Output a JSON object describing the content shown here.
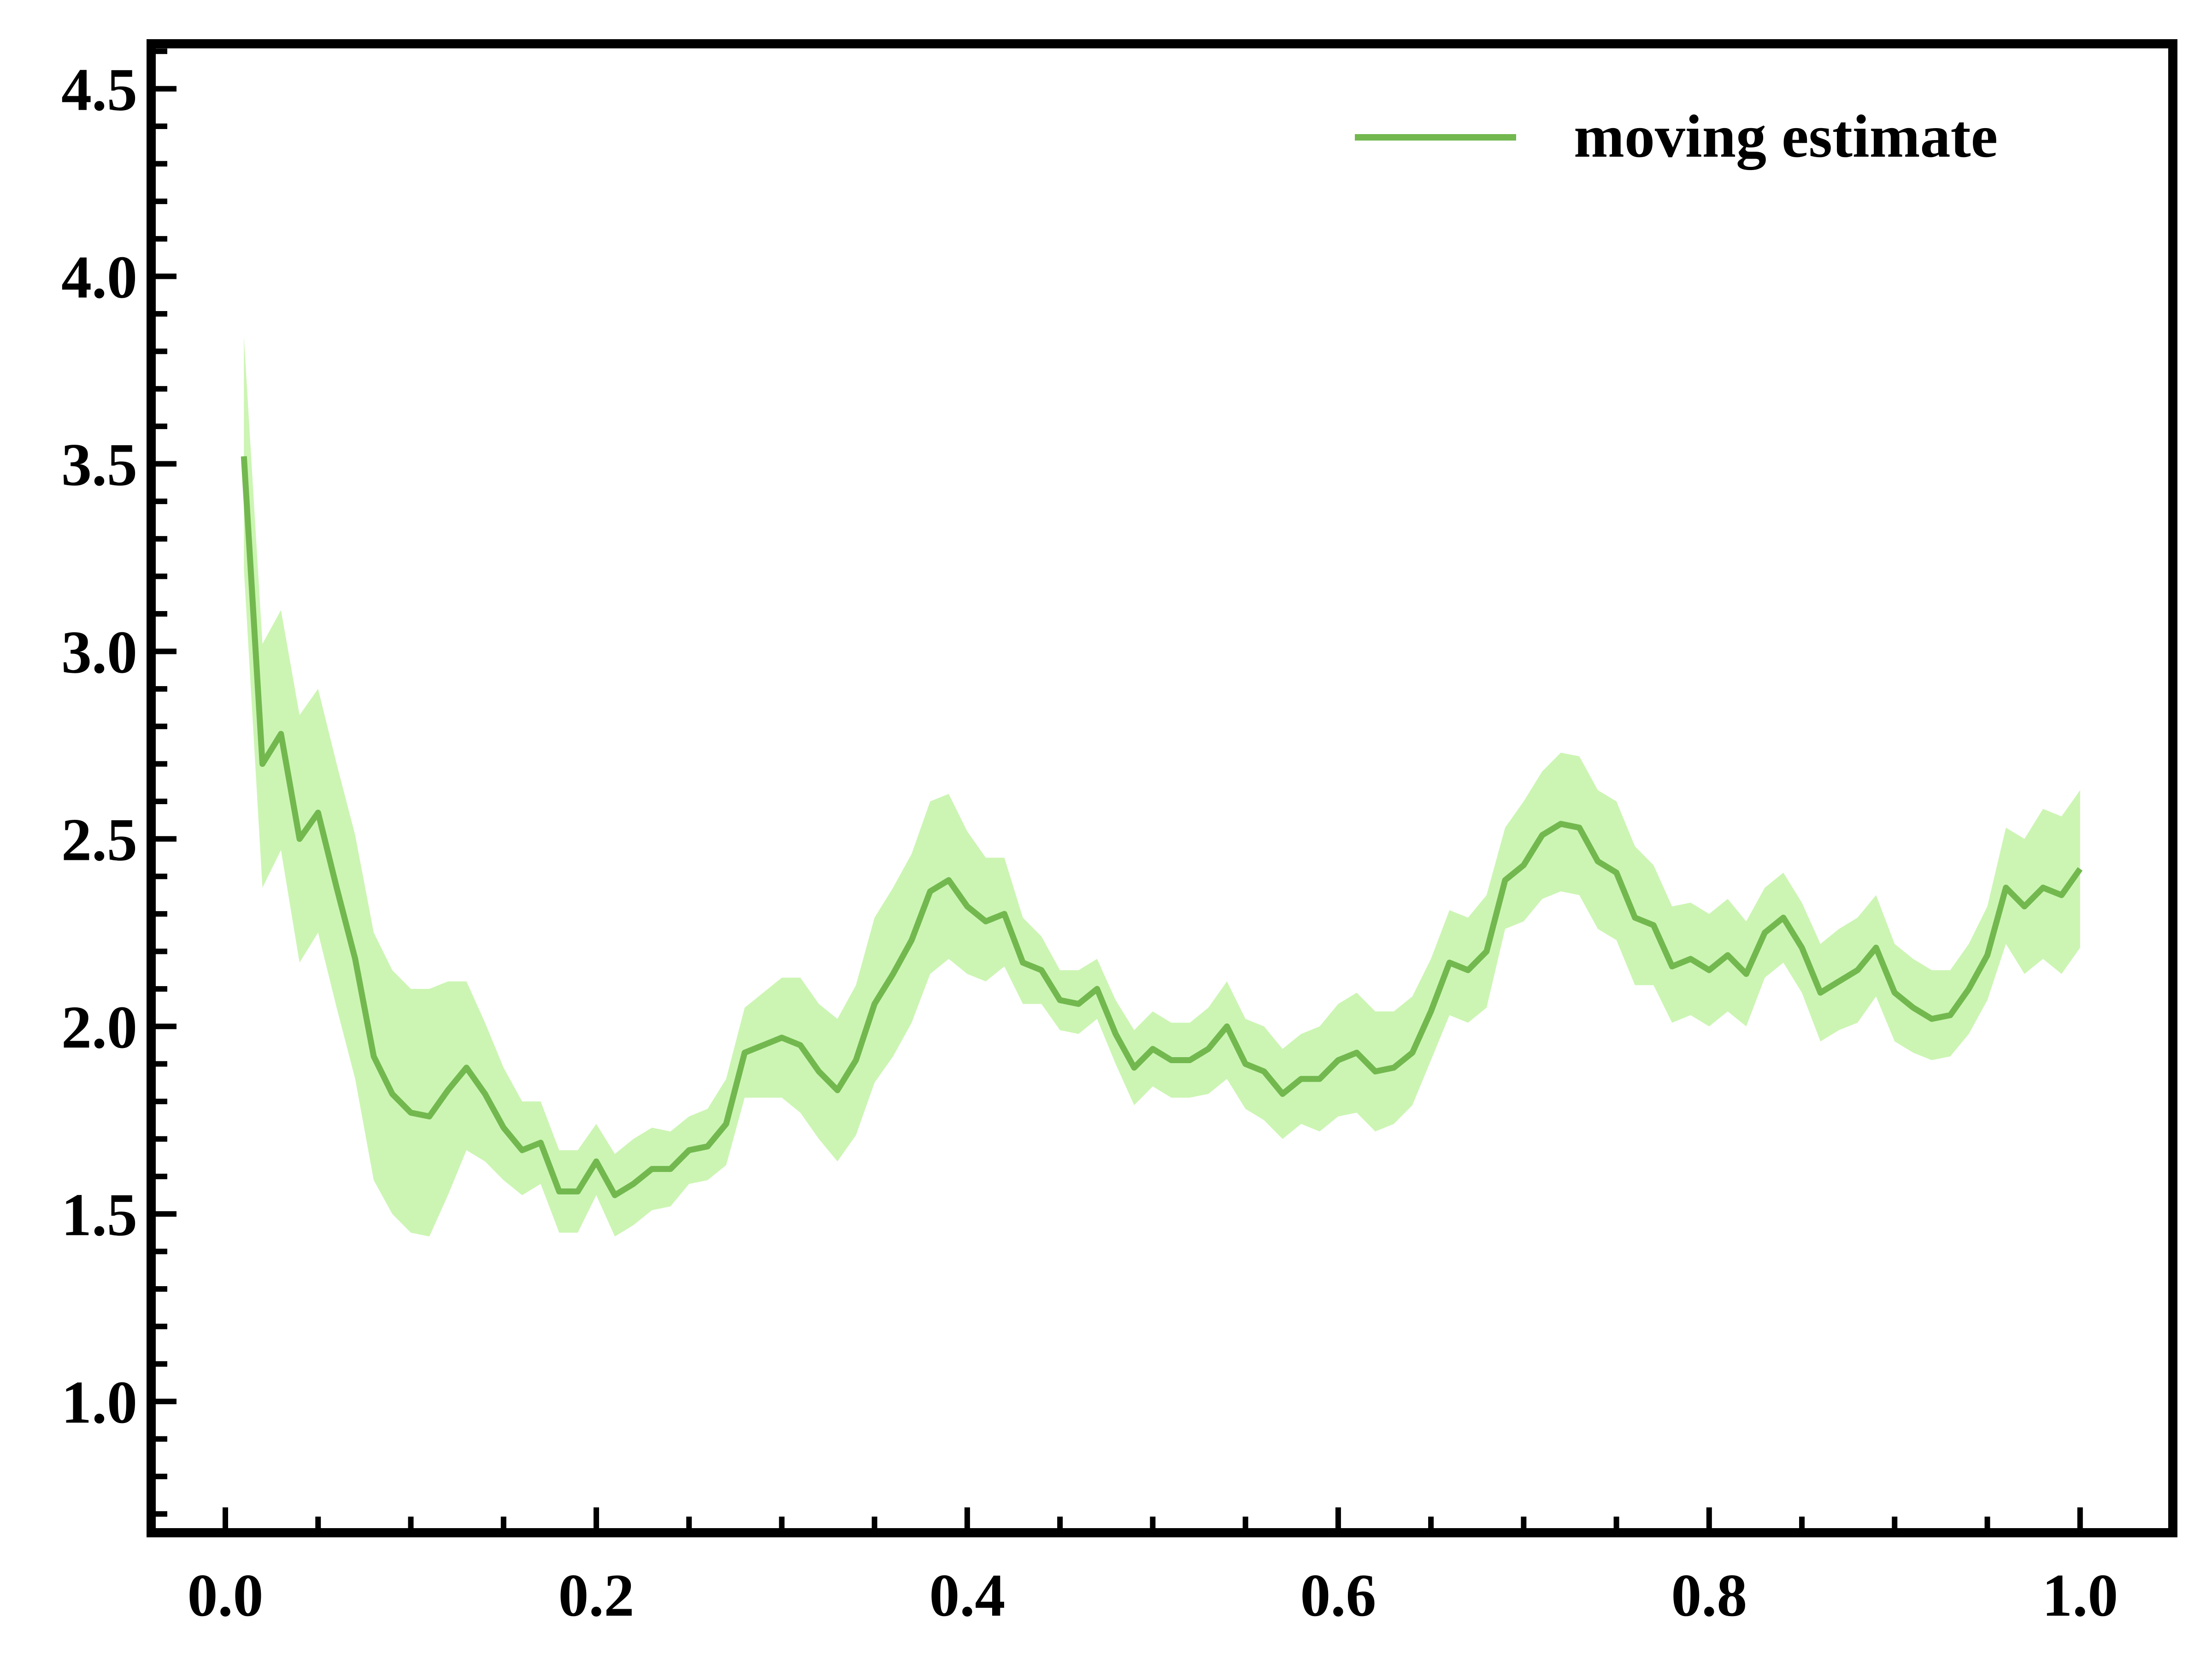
{
  "chart_data": {
    "type": "line",
    "title": "",
    "xlabel": "",
    "ylabel": "",
    "xlim": [
      -0.04,
      1.05
    ],
    "ylim": [
      0.65,
      4.62
    ],
    "x_ticks": [
      0.0,
      0.2,
      0.4,
      0.6,
      0.8,
      1.0
    ],
    "x_tick_labels": [
      "0.0",
      "0.2",
      "0.4",
      "0.6",
      "0.8",
      "1.0"
    ],
    "y_ticks": [
      1.0,
      1.5,
      2.0,
      2.5,
      3.0,
      3.5,
      4.0,
      4.5
    ],
    "y_tick_labels": [
      "1.0",
      "1.5",
      "2.0",
      "2.5",
      "3.0",
      "3.5",
      "4.0",
      "4.5"
    ],
    "grid": false,
    "legend": {
      "placement": "top-right",
      "entries": [
        "moving estimate"
      ]
    },
    "colors": {
      "line": "#72b84f",
      "band": "#ccf5b3",
      "frame": "#000000"
    },
    "series": [
      {
        "name": "moving estimate",
        "x": [
          0.01,
          0.02,
          0.03,
          0.04,
          0.05,
          0.06,
          0.07,
          0.08,
          0.09,
          0.1,
          0.11,
          0.12,
          0.13,
          0.14,
          0.15,
          0.16,
          0.17,
          0.18,
          0.19,
          0.2,
          0.21,
          0.22,
          0.23,
          0.24,
          0.25,
          0.26,
          0.27,
          0.28,
          0.29,
          0.3,
          0.31,
          0.32,
          0.33,
          0.34,
          0.35,
          0.36,
          0.37,
          0.38,
          0.39,
          0.4,
          0.41,
          0.42,
          0.43,
          0.44,
          0.45,
          0.46,
          0.47,
          0.48,
          0.49,
          0.5,
          0.51,
          0.52,
          0.53,
          0.54,
          0.55,
          0.56,
          0.57,
          0.58,
          0.59,
          0.6,
          0.61,
          0.62,
          0.63,
          0.64,
          0.65,
          0.66,
          0.67,
          0.68,
          0.69,
          0.7,
          0.71,
          0.72,
          0.73,
          0.74,
          0.75,
          0.76,
          0.77,
          0.78,
          0.79,
          0.8,
          0.81,
          0.82,
          0.83,
          0.84,
          0.85,
          0.86,
          0.87,
          0.88,
          0.89,
          0.9,
          0.91,
          0.92,
          0.93,
          0.94,
          0.95,
          0.96,
          0.97,
          0.98,
          0.99,
          1.0
        ],
        "y": [
          3.52,
          2.7,
          2.78,
          2.5,
          2.57,
          2.37,
          2.18,
          1.92,
          1.82,
          1.77,
          1.76,
          1.83,
          1.89,
          1.82,
          1.73,
          1.67,
          1.69,
          1.56,
          1.56,
          1.64,
          1.55,
          1.58,
          1.62,
          1.62,
          1.67,
          1.68,
          1.74,
          1.93,
          1.95,
          1.97,
          1.95,
          1.88,
          1.83,
          1.91,
          2.06,
          2.14,
          2.23,
          2.36,
          2.39,
          2.32,
          2.28,
          2.3,
          2.17,
          2.15,
          2.07,
          2.06,
          2.1,
          1.98,
          1.89,
          1.94,
          1.91,
          1.91,
          1.94,
          2.0,
          1.9,
          1.88,
          1.82,
          1.86,
          1.86,
          1.91,
          1.93,
          1.88,
          1.89,
          1.93,
          2.04,
          2.17,
          2.15,
          2.2,
          2.39,
          2.43,
          2.51,
          2.54,
          2.53,
          2.44,
          2.41,
          2.29,
          2.27,
          2.16,
          2.18,
          2.15,
          2.19,
          2.14,
          2.25,
          2.29,
          2.21,
          2.09,
          2.12,
          2.15,
          2.21,
          2.09,
          2.05,
          2.02,
          2.03,
          2.1,
          2.19,
          2.37,
          2.32,
          2.37,
          2.35,
          2.42
        ],
        "band_lower": [
          3.22,
          2.37,
          2.47,
          2.17,
          2.25,
          2.05,
          1.86,
          1.59,
          1.5,
          1.45,
          1.44,
          1.55,
          1.67,
          1.64,
          1.59,
          1.55,
          1.58,
          1.45,
          1.45,
          1.55,
          1.44,
          1.47,
          1.51,
          1.52,
          1.58,
          1.59,
          1.63,
          1.81,
          1.81,
          1.81,
          1.77,
          1.7,
          1.64,
          1.71,
          1.85,
          1.92,
          2.01,
          2.14,
          2.18,
          2.14,
          2.12,
          2.16,
          2.06,
          2.06,
          1.99,
          1.98,
          2.02,
          1.9,
          1.79,
          1.84,
          1.81,
          1.81,
          1.82,
          1.86,
          1.78,
          1.75,
          1.7,
          1.74,
          1.72,
          1.76,
          1.77,
          1.72,
          1.74,
          1.79,
          1.91,
          2.03,
          2.01,
          2.05,
          2.26,
          2.28,
          2.34,
          2.36,
          2.35,
          2.26,
          2.23,
          2.11,
          2.11,
          2.01,
          2.03,
          2.0,
          2.04,
          2.0,
          2.13,
          2.17,
          2.09,
          1.96,
          1.99,
          2.01,
          2.08,
          1.96,
          1.93,
          1.91,
          1.92,
          1.98,
          2.07,
          2.22,
          2.14,
          2.18,
          2.14,
          2.21
        ],
        "band_upper": [
          3.84,
          3.02,
          3.11,
          2.83,
          2.9,
          2.7,
          2.51,
          2.25,
          2.15,
          2.1,
          2.1,
          2.12,
          2.12,
          2.01,
          1.89,
          1.8,
          1.8,
          1.67,
          1.67,
          1.74,
          1.66,
          1.7,
          1.73,
          1.72,
          1.76,
          1.78,
          1.86,
          2.05,
          2.09,
          2.13,
          2.13,
          2.06,
          2.02,
          2.11,
          2.29,
          2.37,
          2.46,
          2.6,
          2.62,
          2.52,
          2.45,
          2.45,
          2.29,
          2.24,
          2.15,
          2.15,
          2.18,
          2.07,
          1.99,
          2.04,
          2.01,
          2.01,
          2.05,
          2.12,
          2.02,
          2.0,
          1.94,
          1.98,
          2.0,
          2.06,
          2.09,
          2.04,
          2.04,
          2.08,
          2.18,
          2.31,
          2.29,
          2.35,
          2.53,
          2.6,
          2.68,
          2.73,
          2.72,
          2.63,
          2.6,
          2.48,
          2.43,
          2.32,
          2.33,
          2.3,
          2.34,
          2.28,
          2.37,
          2.41,
          2.33,
          2.22,
          2.26,
          2.29,
          2.35,
          2.22,
          2.18,
          2.15,
          2.15,
          2.22,
          2.32,
          2.53,
          2.5,
          2.58,
          2.56,
          2.63
        ]
      }
    ]
  }
}
